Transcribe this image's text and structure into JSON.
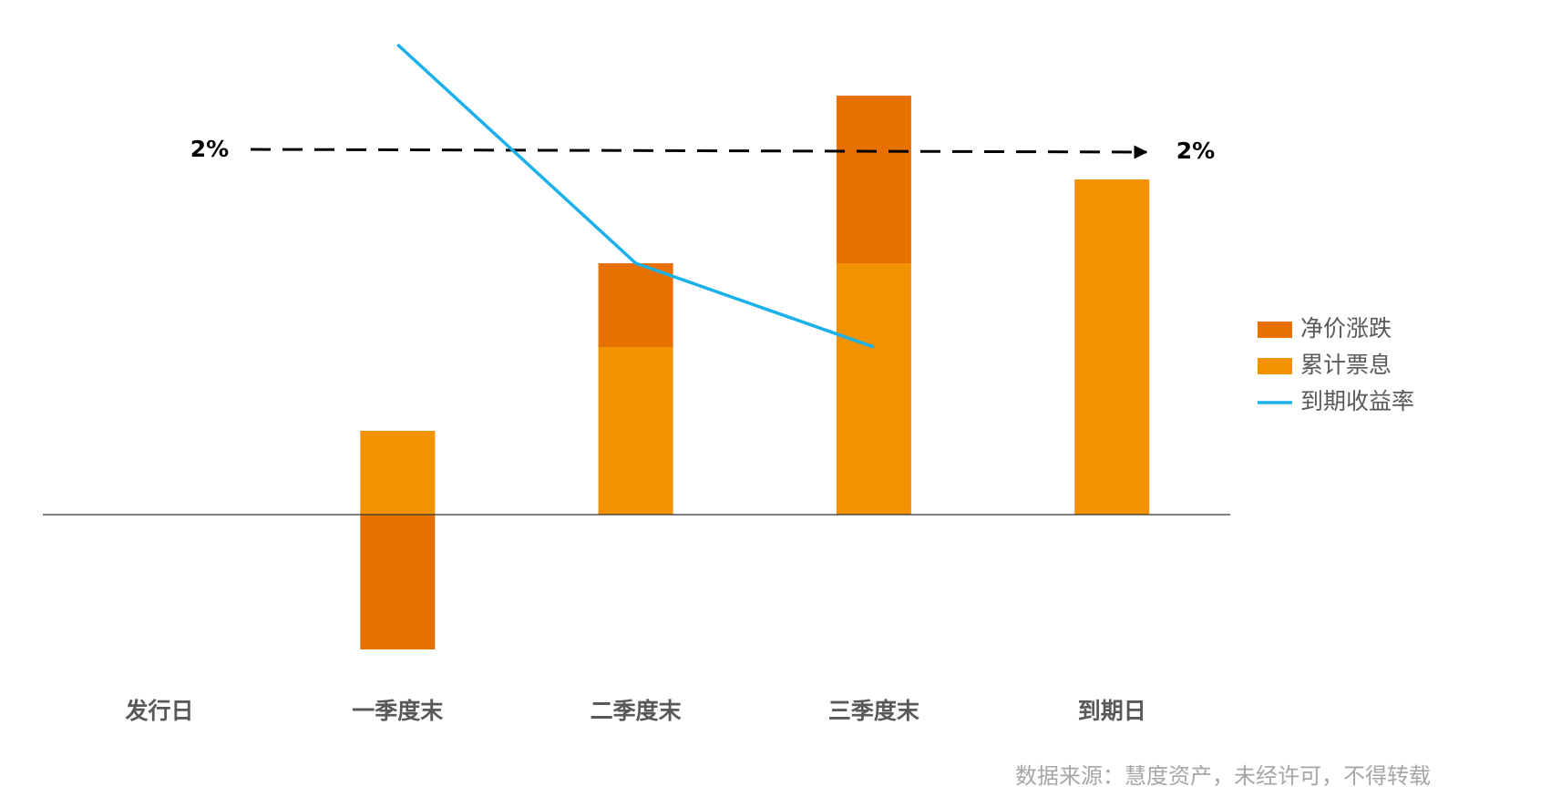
{
  "chart_data": {
    "type": "bar",
    "categories": [
      "发行日",
      "一季度末",
      "二季度末",
      "三季度末",
      "到期日"
    ],
    "series": [
      {
        "name": "净价涨跌",
        "color": "#e87000",
        "values": [
          0,
          -0.74,
          0.46,
          0.92,
          0
        ]
      },
      {
        "name": "累计票息",
        "color": "#f39200",
        "values": [
          0,
          0.46,
          0.92,
          1.38,
          1.84
        ]
      },
      {
        "name": "到期收益率",
        "type": "line",
        "color": "#1ab0ea",
        "values": [
          null,
          2.58,
          1.38,
          0.92,
          null
        ]
      }
    ],
    "reference_line": {
      "value": 2,
      "label": "2%"
    },
    "source": "数据来源：慧度资产，未经许可，不得转载"
  }
}
